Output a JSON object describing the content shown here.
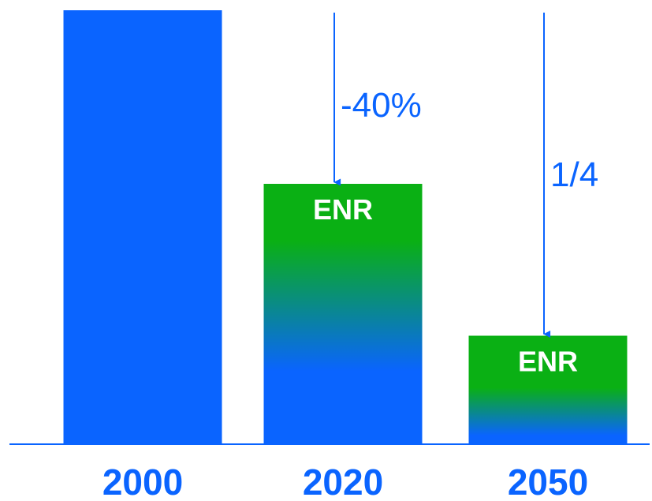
{
  "chart_data": {
    "type": "bar",
    "categories": [
      "2000",
      "2020",
      "2050"
    ],
    "values": [
      100,
      60,
      25
    ],
    "title": "",
    "xlabel": "",
    "ylabel": "",
    "ylim": [
      0,
      100
    ],
    "grid": false,
    "bar_labels": [
      "",
      "ENR",
      "ENR"
    ],
    "annotations": [
      {
        "category": "2020",
        "text": "-40%"
      },
      {
        "category": "2050",
        "text": "1/4"
      }
    ],
    "colors": {
      "bar_blue": "#0a64ff",
      "enr_green": "#0ab014",
      "axis": "#0a64ff",
      "arrow": "#0a64ff",
      "label_text": "#0a64ff",
      "bar_label_text": "#ffffff"
    }
  }
}
